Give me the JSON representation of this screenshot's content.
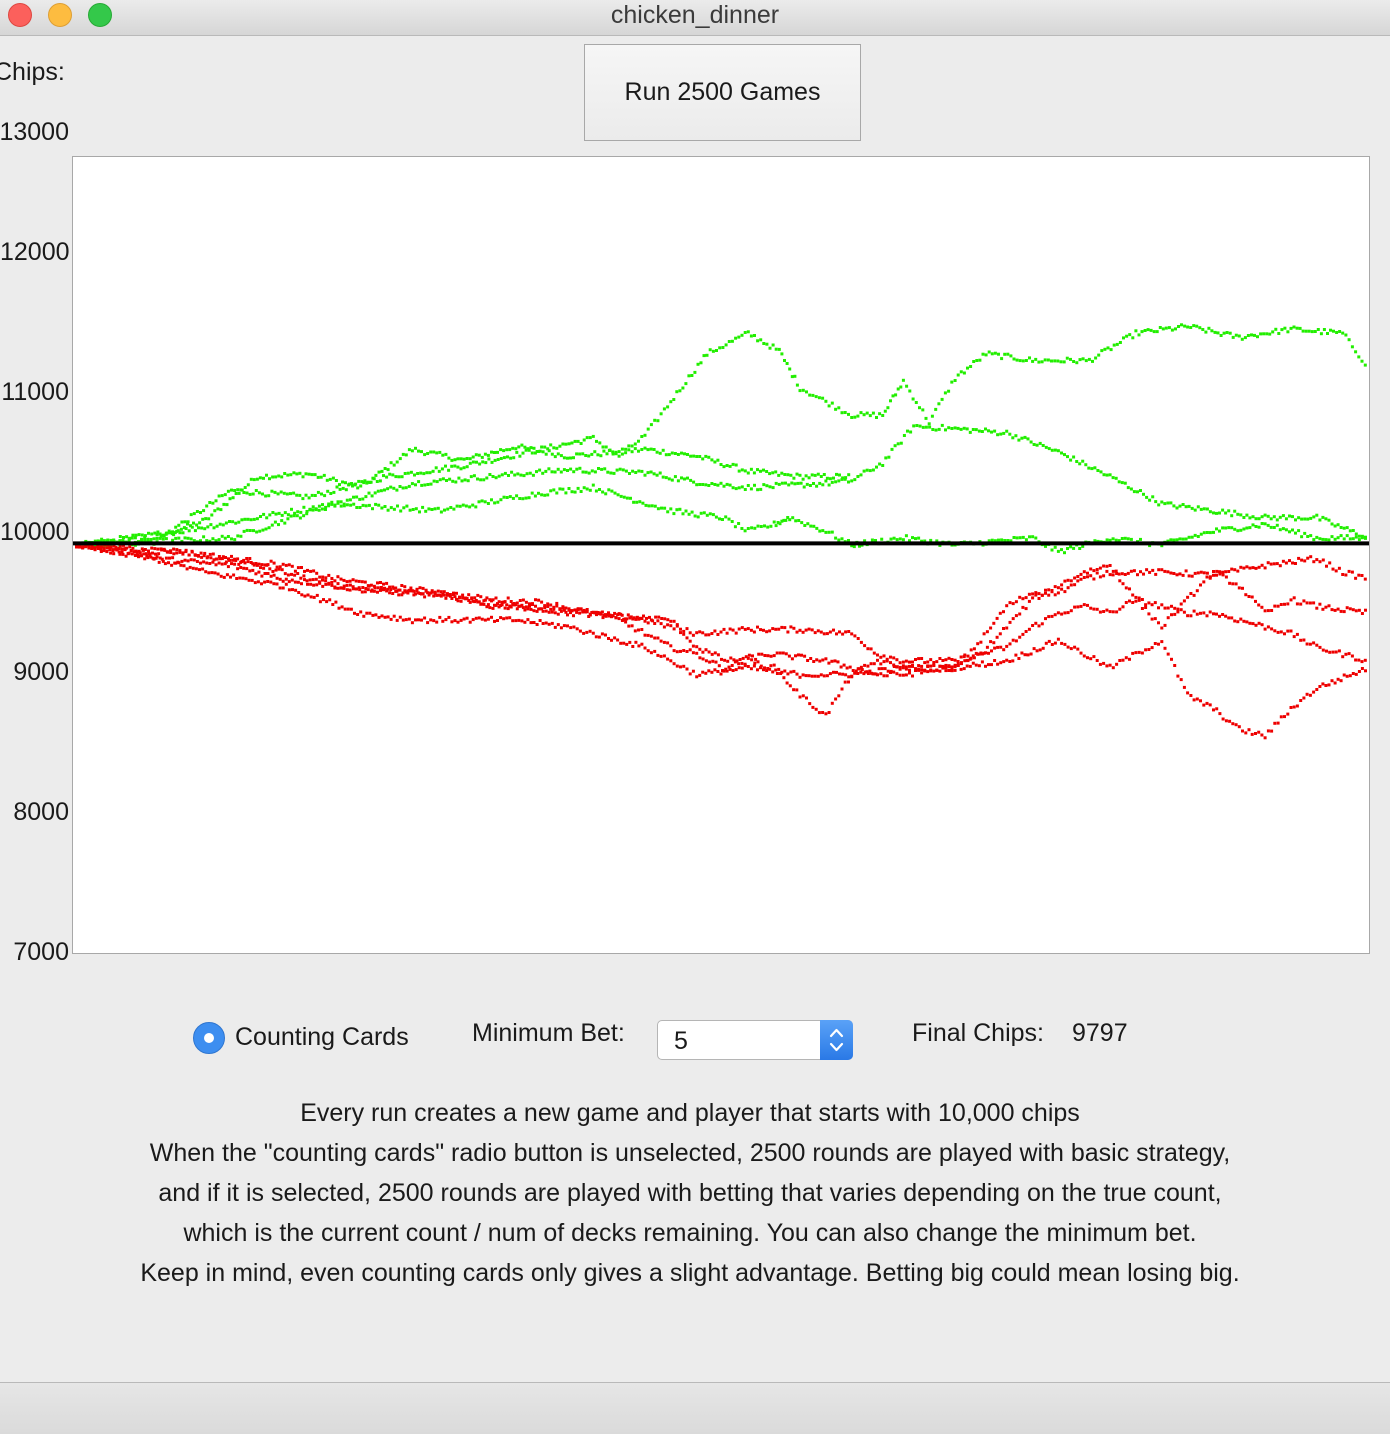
{
  "window": {
    "title": "chicken_dinner"
  },
  "header": {
    "chips_label": "Chips:",
    "run_button_label": "Run 2500 Games"
  },
  "chart_data": {
    "type": "scatter",
    "ylabel": "Chips:",
    "ylim": [
      7000,
      13000
    ],
    "y_ticks": [
      "13000",
      "12000",
      "11000",
      "10000",
      "9000",
      "8000",
      "7000"
    ],
    "y_tick_display": [
      "13000",
      "12000",
      "11000",
      "10000",
      "9000",
      "8000",
      "7000"
    ],
    "baseline": 10000,
    "baseline_color": "#000000",
    "x_range": [
      0,
      2500
    ],
    "grid": false,
    "colors": {
      "above": "#22ee00",
      "below": "#ee0000"
    },
    "series": [
      {
        "color": "green",
        "points": [
          [
            0,
            10000
          ],
          [
            150,
            10050
          ],
          [
            250,
            10180
          ],
          [
            350,
            10500
          ],
          [
            450,
            10520
          ],
          [
            550,
            10420
          ],
          [
            650,
            10700
          ],
          [
            750,
            10620
          ],
          [
            850,
            10720
          ],
          [
            950,
            10650
          ],
          [
            1050,
            10680
          ],
          [
            1100,
            10700
          ],
          [
            1200,
            10650
          ],
          [
            1300,
            10540
          ],
          [
            1400,
            10500
          ],
          [
            1500,
            10500
          ]
        ]
      },
      {
        "color": "green",
        "points": [
          [
            0,
            10000
          ],
          [
            150,
            10020
          ],
          [
            300,
            10400
          ],
          [
            450,
            10350
          ],
          [
            600,
            10500
          ],
          [
            750,
            10580
          ],
          [
            900,
            10700
          ],
          [
            1000,
            10780
          ],
          [
            1050,
            10650
          ],
          [
            1100,
            10800
          ],
          [
            1150,
            11050
          ],
          [
            1220,
            11400
          ],
          [
            1300,
            11550
          ],
          [
            1360,
            11420
          ],
          [
            1400,
            11150
          ],
          [
            1450,
            11050
          ],
          [
            1500,
            10950
          ],
          [
            1560,
            10950
          ],
          [
            1600,
            11200
          ],
          [
            1650,
            10900
          ],
          [
            1700,
            11220
          ],
          [
            1760,
            11400
          ],
          [
            1850,
            11350
          ],
          [
            1960,
            11350
          ],
          [
            2050,
            11550
          ],
          [
            2150,
            11600
          ],
          [
            2250,
            11520
          ],
          [
            2350,
            11580
          ],
          [
            2450,
            11550
          ],
          [
            2500,
            11300
          ]
        ]
      },
      {
        "color": "green",
        "points": [
          [
            0,
            10000
          ],
          [
            200,
            10100
          ],
          [
            350,
            10200
          ],
          [
            500,
            10300
          ],
          [
            650,
            10450
          ],
          [
            800,
            10500
          ],
          [
            950,
            10550
          ],
          [
            1100,
            10530
          ],
          [
            1200,
            10460
          ],
          [
            1300,
            10420
          ],
          [
            1450,
            10450
          ],
          [
            1500,
            10470
          ],
          [
            1560,
            10600
          ],
          [
            1620,
            10870
          ],
          [
            1700,
            10850
          ],
          [
            1800,
            10820
          ],
          [
            1900,
            10680
          ],
          [
            2000,
            10500
          ],
          [
            2100,
            10300
          ],
          [
            2200,
            10250
          ],
          [
            2300,
            10200
          ],
          [
            2400,
            10200
          ],
          [
            2500,
            10050
          ]
        ]
      },
      {
        "color": "green",
        "points": [
          [
            0,
            10000
          ],
          [
            300,
            10050
          ],
          [
            500,
            10300
          ],
          [
            700,
            10250
          ],
          [
            900,
            10380
          ],
          [
            1000,
            10420
          ],
          [
            1150,
            10250
          ],
          [
            1250,
            10200
          ],
          [
            1300,
            10100
          ],
          [
            1350,
            10150
          ],
          [
            1380,
            10200
          ],
          [
            1450,
            10100
          ],
          [
            1500,
            10000
          ],
          [
            1540,
            10020
          ],
          [
            1600,
            10050
          ],
          [
            1700,
            10000
          ],
          [
            1850,
            10050
          ],
          [
            1900,
            9950
          ],
          [
            2000,
            10050
          ],
          [
            2100,
            10000
          ],
          [
            2200,
            10100
          ],
          [
            2300,
            10150
          ],
          [
            2400,
            10050
          ],
          [
            2500,
            10050
          ]
        ]
      },
      {
        "color": "red",
        "points": [
          [
            0,
            10000
          ],
          [
            100,
            9950
          ],
          [
            200,
            9950
          ],
          [
            300,
            9900
          ],
          [
            400,
            9850
          ],
          [
            500,
            9750
          ],
          [
            600,
            9700
          ],
          [
            700,
            9650
          ],
          [
            800,
            9600
          ],
          [
            900,
            9580
          ],
          [
            1000,
            9500
          ],
          [
            1100,
            9450
          ],
          [
            1150,
            9400
          ],
          [
            1200,
            9350
          ],
          [
            1300,
            9380
          ],
          [
            1400,
            9380
          ],
          [
            1500,
            9350
          ],
          [
            1550,
            9200
          ],
          [
            1600,
            9150
          ],
          [
            1700,
            9150
          ],
          [
            1800,
            9250
          ],
          [
            1850,
            9400
          ],
          [
            1900,
            9500
          ],
          [
            1950,
            9550
          ],
          [
            2000,
            9500
          ],
          [
            2050,
            9600
          ],
          [
            2100,
            9550
          ],
          [
            2150,
            9500
          ],
          [
            2200,
            9500
          ],
          [
            2300,
            9400
          ],
          [
            2350,
            9350
          ],
          [
            2400,
            9250
          ],
          [
            2450,
            9200
          ],
          [
            2500,
            9150
          ]
        ]
      },
      {
        "color": "red",
        "points": [
          [
            0,
            10000
          ],
          [
            150,
            9900
          ],
          [
            300,
            9850
          ],
          [
            400,
            9750
          ],
          [
            500,
            9700
          ],
          [
            600,
            9650
          ],
          [
            700,
            9650
          ],
          [
            800,
            9550
          ],
          [
            900,
            9550
          ],
          [
            1000,
            9500
          ],
          [
            1050,
            9450
          ],
          [
            1100,
            9350
          ],
          [
            1150,
            9250
          ],
          [
            1200,
            9200
          ],
          [
            1250,
            9100
          ],
          [
            1300,
            9150
          ],
          [
            1350,
            9100
          ],
          [
            1400,
            8900
          ],
          [
            1450,
            8750
          ],
          [
            1500,
            9050
          ],
          [
            1550,
            9150
          ],
          [
            1600,
            9100
          ],
          [
            1700,
            9100
          ],
          [
            1750,
            9300
          ],
          [
            1800,
            9550
          ],
          [
            1850,
            9650
          ],
          [
            1900,
            9650
          ],
          [
            1950,
            9750
          ],
          [
            2000,
            9800
          ],
          [
            2100,
            9800
          ],
          [
            2200,
            9780
          ],
          [
            2300,
            9850
          ],
          [
            2400,
            9900
          ],
          [
            2450,
            9800
          ],
          [
            2500,
            9750
          ]
        ]
      },
      {
        "color": "red",
        "points": [
          [
            0,
            10000
          ],
          [
            200,
            9950
          ],
          [
            350,
            9850
          ],
          [
            500,
            9700
          ],
          [
            650,
            9650
          ],
          [
            750,
            9600
          ],
          [
            850,
            9550
          ],
          [
            950,
            9500
          ],
          [
            1050,
            9480
          ],
          [
            1150,
            9450
          ],
          [
            1200,
            9250
          ],
          [
            1260,
            9150
          ],
          [
            1350,
            9200
          ],
          [
            1450,
            9150
          ],
          [
            1550,
            9050
          ],
          [
            1600,
            9050
          ],
          [
            1700,
            9100
          ],
          [
            1750,
            9200
          ],
          [
            1800,
            9400
          ],
          [
            1850,
            9600
          ],
          [
            1900,
            9700
          ],
          [
            1950,
            9800
          ],
          [
            2000,
            9850
          ],
          [
            2050,
            9600
          ],
          [
            2100,
            9400
          ],
          [
            2150,
            9600
          ],
          [
            2200,
            9800
          ],
          [
            2250,
            9700
          ],
          [
            2300,
            9500
          ],
          [
            2350,
            9600
          ],
          [
            2400,
            9550
          ],
          [
            2500,
            9500
          ]
        ]
      },
      {
        "color": "red",
        "points": [
          [
            0,
            10000
          ],
          [
            100,
            9950
          ],
          [
            250,
            9800
          ],
          [
            400,
            9700
          ],
          [
            550,
            9500
          ],
          [
            650,
            9450
          ],
          [
            750,
            9450
          ],
          [
            850,
            9450
          ],
          [
            950,
            9400
          ],
          [
            1000,
            9350
          ],
          [
            1100,
            9250
          ],
          [
            1150,
            9150
          ],
          [
            1200,
            9050
          ],
          [
            1300,
            9100
          ],
          [
            1400,
            9050
          ],
          [
            1500,
            9050
          ],
          [
            1600,
            9100
          ],
          [
            1700,
            9100
          ],
          [
            1800,
            9150
          ],
          [
            1900,
            9300
          ],
          [
            1950,
            9200
          ],
          [
            2000,
            9100
          ],
          [
            2050,
            9200
          ],
          [
            2100,
            9300
          ],
          [
            2150,
            8900
          ],
          [
            2200,
            8800
          ],
          [
            2250,
            8650
          ],
          [
            2300,
            8600
          ],
          [
            2350,
            8800
          ],
          [
            2400,
            8950
          ],
          [
            2500,
            9100
          ]
        ]
      }
    ]
  },
  "controls": {
    "radio_label": "Counting Cards",
    "radio_selected": true,
    "min_bet_label": "Minimum Bet:",
    "min_bet_value": "5",
    "final_chips_label": "Final Chips:",
    "final_chips_value": "9797"
  },
  "description": {
    "lines": [
      "Every run creates a new game and player that starts with 10,000 chips",
      "When the \"counting cards\" radio button is unselected, 2500 rounds are played with basic strategy,",
      "and if it is selected, 2500 rounds are played with betting that varies depending on the true count,",
      "which is the current count / num of decks remaining. You can also change the minimum bet.",
      "Keep in mind, even counting cards only gives a slight advantage. Betting big could mean losing big."
    ]
  },
  "accent_color": "#3d8ef0"
}
